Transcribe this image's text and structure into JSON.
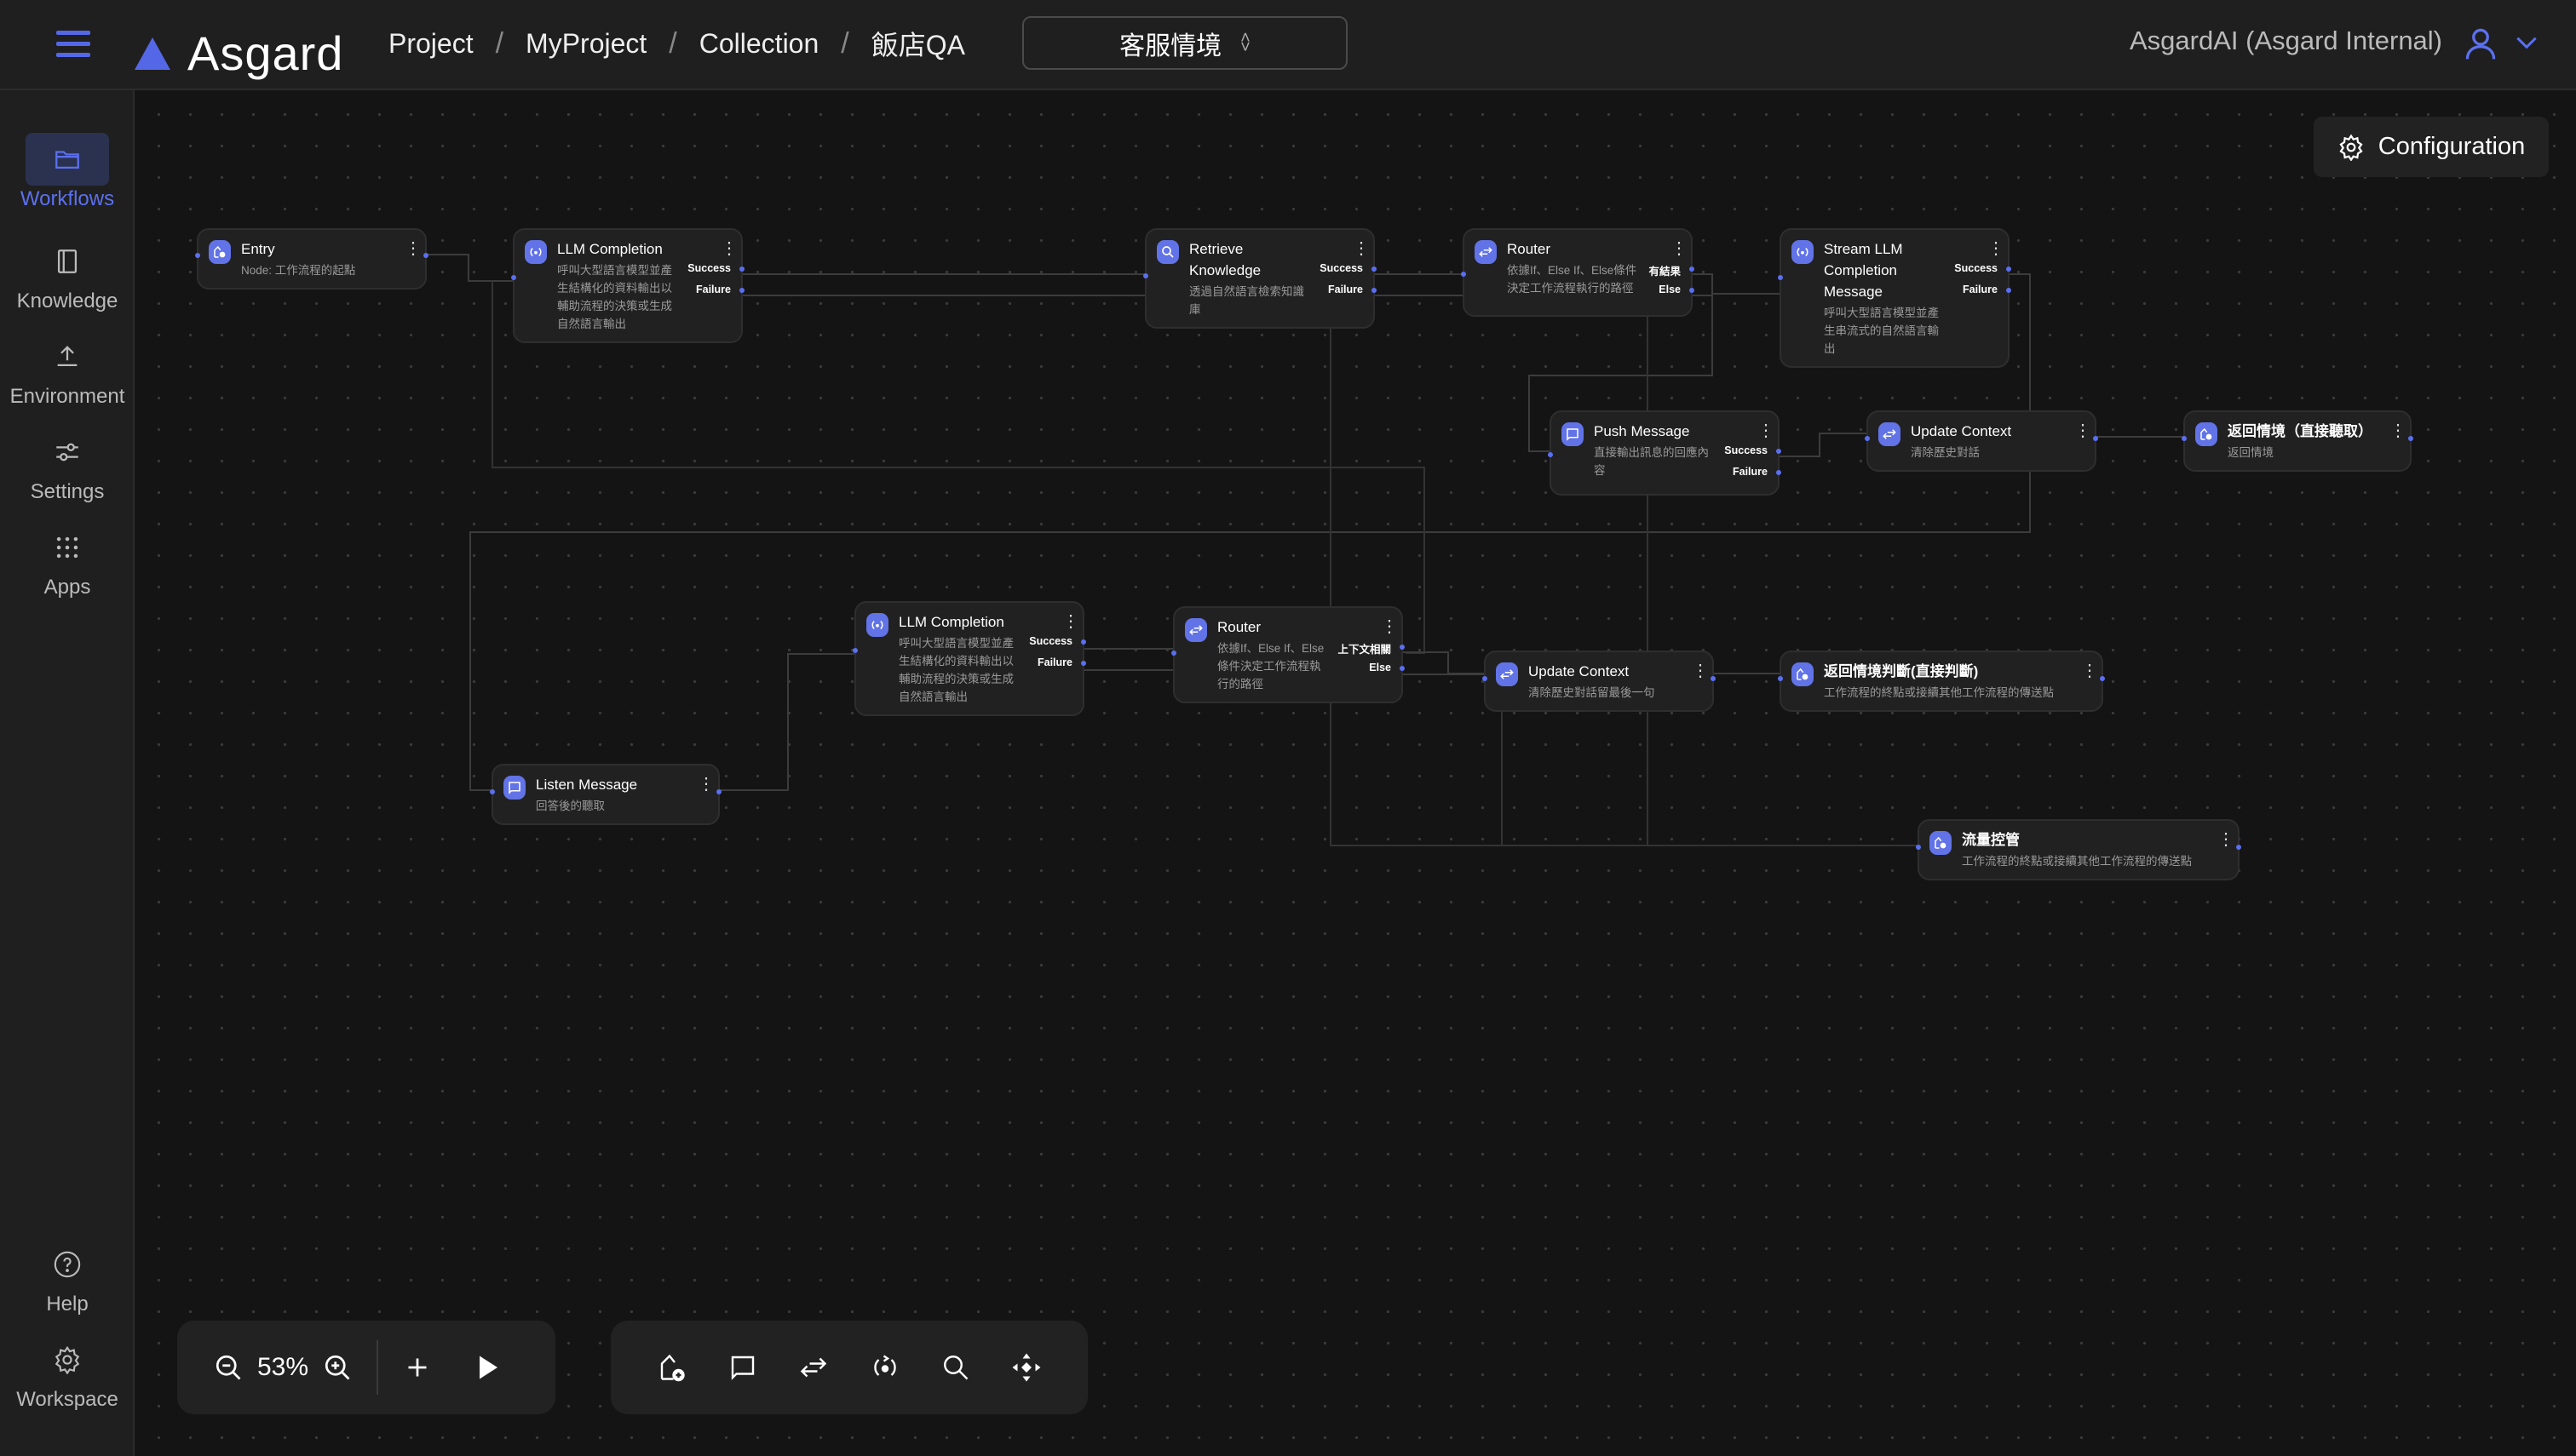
{
  "header": {
    "app_name": "Asgard",
    "breadcrumbs": [
      "Project",
      "MyProject",
      "Collection",
      "飯店QA"
    ],
    "separator": "/",
    "selector_value": "客服情境",
    "account": "AsgardAI (Asgard Internal)"
  },
  "sidebar": {
    "items": [
      {
        "label": "Workflows",
        "icon": "folder-icon",
        "active": true
      },
      {
        "label": "Knowledge",
        "icon": "book-icon"
      },
      {
        "label": "Environment",
        "icon": "upload-icon"
      },
      {
        "label": "Settings",
        "icon": "sliders-icon"
      },
      {
        "label": "Apps",
        "icon": "grid-icon"
      }
    ],
    "bottom": [
      {
        "label": "Help",
        "icon": "help-icon"
      },
      {
        "label": "Workspace",
        "icon": "gear-icon"
      }
    ]
  },
  "canvas": {
    "configuration_label": "Configuration",
    "accent": "#5b6ff0",
    "nodes": [
      {
        "type": "entry",
        "title": "Entry",
        "desc": "Node: 工作流程的起點",
        "ports": []
      },
      {
        "type": "llm",
        "title": "LLM Completion",
        "desc": "呼叫大型語言模型並產生結構化的資料輸出以輔助流程的決策或生成自然語言輸出",
        "ports": [
          "Success",
          "Failure"
        ]
      },
      {
        "type": "search",
        "title": "Retrieve Knowledge",
        "desc": "透過自然語言檢索知識庫",
        "ports": [
          "Success",
          "Failure"
        ]
      },
      {
        "type": "router",
        "title": "Router",
        "desc": "依據If、Else If、Else條件決定工作流程執行的路徑",
        "ports": [
          "有結果",
          "Else"
        ]
      },
      {
        "type": "llm",
        "title": "Stream LLM Completion Message",
        "desc": "呼叫大型語言模型並產生串流式的自然語言輸出",
        "ports": [
          "Success",
          "Failure"
        ]
      },
      {
        "type": "message",
        "title": "Push Message",
        "desc": "直接輸出訊息的回應內容",
        "ports": [
          "Success",
          "Failure"
        ]
      },
      {
        "type": "router",
        "title": "Update Context",
        "desc": "清除歷史對話",
        "ports": []
      },
      {
        "type": "entry",
        "title": "返回情境（直接聽取）",
        "desc": "返回情境",
        "ports": []
      },
      {
        "type": "llm",
        "title": "LLM Completion",
        "desc": "呼叫大型語言模型並產生結構化的資料輸出以輔助流程的決策或生成自然語言輸出",
        "ports": [
          "Success",
          "Failure"
        ]
      },
      {
        "type": "router",
        "title": "Router",
        "desc": "依據If、Else If、Else條件決定工作流程執行的路徑",
        "ports": [
          "上下文相關",
          "Else"
        ]
      },
      {
        "type": "message",
        "title": "Listen Message",
        "desc": "回答後的聽取",
        "ports": []
      },
      {
        "type": "router",
        "title": "Update Context",
        "desc": "清除歷史對話留最後一句",
        "ports": []
      },
      {
        "type": "entry",
        "title": "返回情境判斷(直接判斷)",
        "desc": "工作流程的終點或接續其他工作流程的傳送點",
        "ports": []
      },
      {
        "type": "entry",
        "title": "流量控管",
        "desc": "工作流程的終點或接續其他工作流程的傳送點",
        "ports": []
      }
    ]
  },
  "toolbar": {
    "zoom_level": "53%",
    "tools": [
      "add-endpoint-icon",
      "message-icon",
      "router-icon",
      "llm-icon",
      "search-icon",
      "layout-icon"
    ]
  }
}
